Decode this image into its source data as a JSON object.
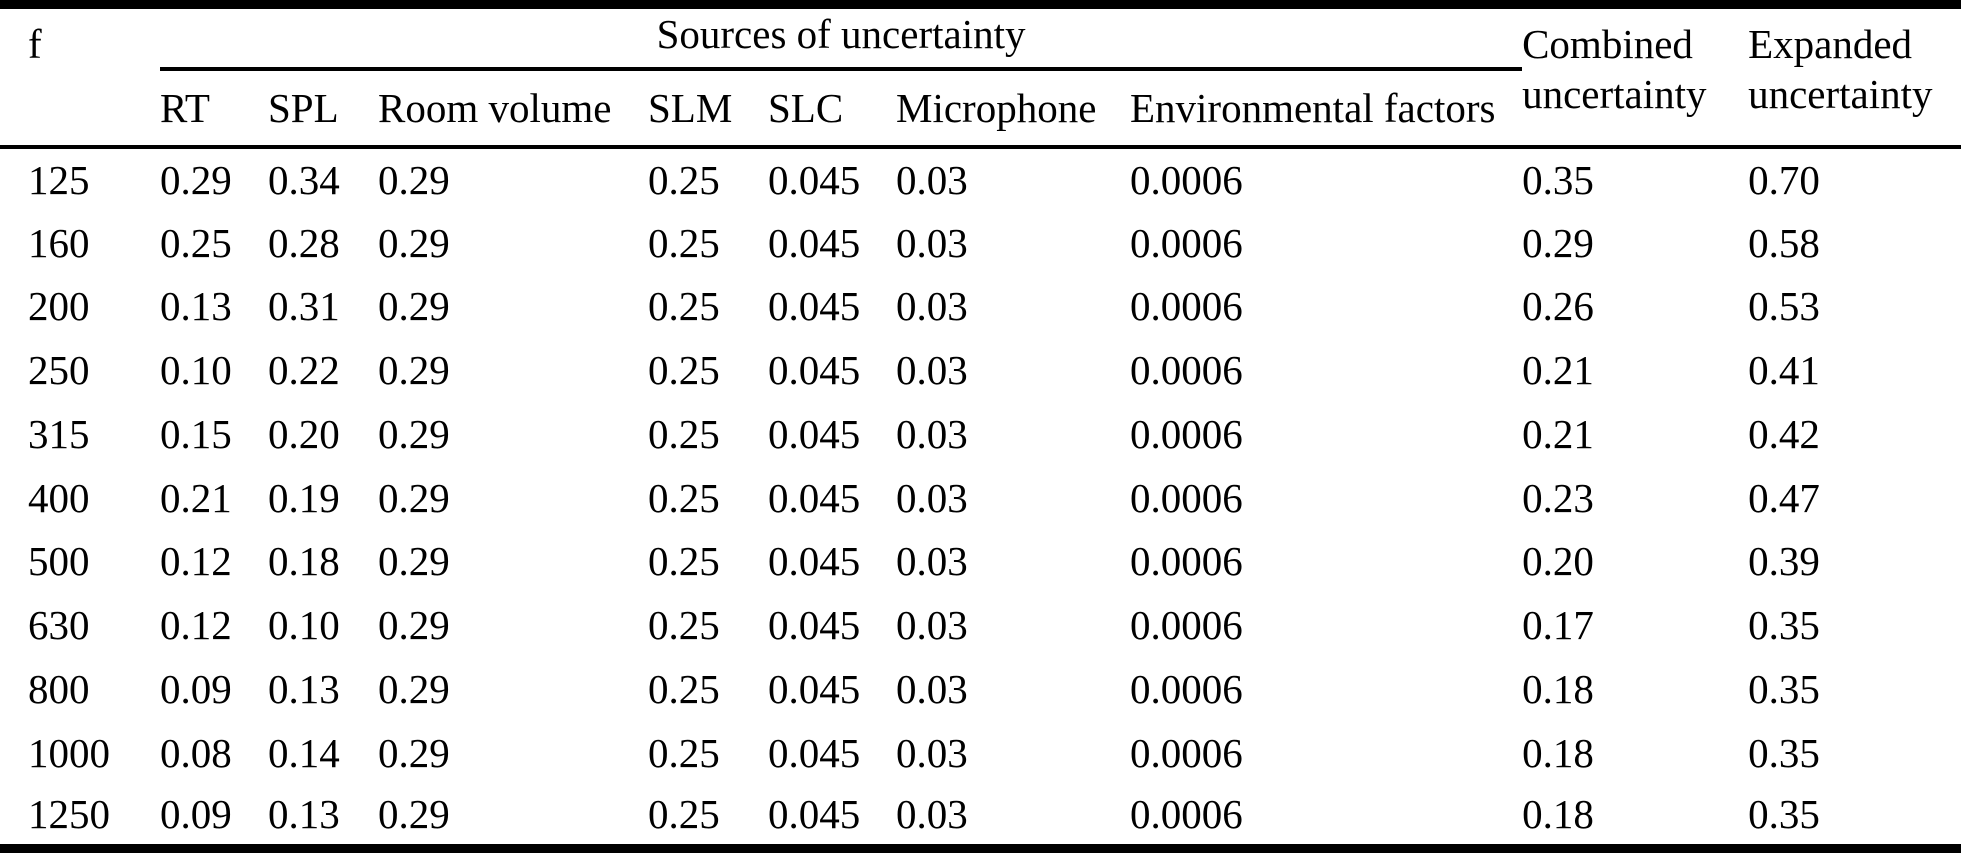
{
  "table": {
    "f_header": "f",
    "sources_group_header": "Sources of uncertainty",
    "combined_header": "Combined uncertainty",
    "expanded_header": "Expanded uncertainty",
    "source_columns": {
      "rt": "RT",
      "spl": "SPL",
      "room_volume": "Room volume",
      "slm": "SLM",
      "slc": "SLC",
      "microphone": "Microphone",
      "environmental_factors": "Environmental factors"
    },
    "rows": [
      [
        "125",
        "0.29",
        "0.34",
        "0.29",
        "0.25",
        "0.045",
        "0.03",
        "0.0006",
        "0.35",
        "0.70"
      ],
      [
        "160",
        "0.25",
        "0.28",
        "0.29",
        "0.25",
        "0.045",
        "0.03",
        "0.0006",
        "0.29",
        "0.58"
      ],
      [
        "200",
        "0.13",
        "0.31",
        "0.29",
        "0.25",
        "0.045",
        "0.03",
        "0.0006",
        "0.26",
        "0.53"
      ],
      [
        "250",
        "0.10",
        "0.22",
        "0.29",
        "0.25",
        "0.045",
        "0.03",
        "0.0006",
        "0.21",
        "0.41"
      ],
      [
        "315",
        "0.15",
        "0.20",
        "0.29",
        "0.25",
        "0.045",
        "0.03",
        "0.0006",
        "0.21",
        "0.42"
      ],
      [
        "400",
        "0.21",
        "0.19",
        "0.29",
        "0.25",
        "0.045",
        "0.03",
        "0.0006",
        "0.23",
        "0.47"
      ],
      [
        "500",
        "0.12",
        "0.18",
        "0.29",
        "0.25",
        "0.045",
        "0.03",
        "0.0006",
        "0.20",
        "0.39"
      ],
      [
        "630",
        "0.12",
        "0.10",
        "0.29",
        "0.25",
        "0.045",
        "0.03",
        "0.0006",
        "0.17",
        "0.35"
      ],
      [
        "800",
        "0.09",
        "0.13",
        "0.29",
        "0.25",
        "0.045",
        "0.03",
        "0.0006",
        "0.18",
        "0.35"
      ],
      [
        "1000",
        "0.08",
        "0.14",
        "0.29",
        "0.25",
        "0.045",
        "0.03",
        "0.0006",
        "0.18",
        "0.35"
      ],
      [
        "1250",
        "0.09",
        "0.13",
        "0.29",
        "0.25",
        "0.045",
        "0.03",
        "0.0006",
        "0.18",
        "0.35"
      ]
    ]
  },
  "colors": {
    "background": "#ffffff",
    "text": "#000000",
    "rule": "#000000"
  }
}
